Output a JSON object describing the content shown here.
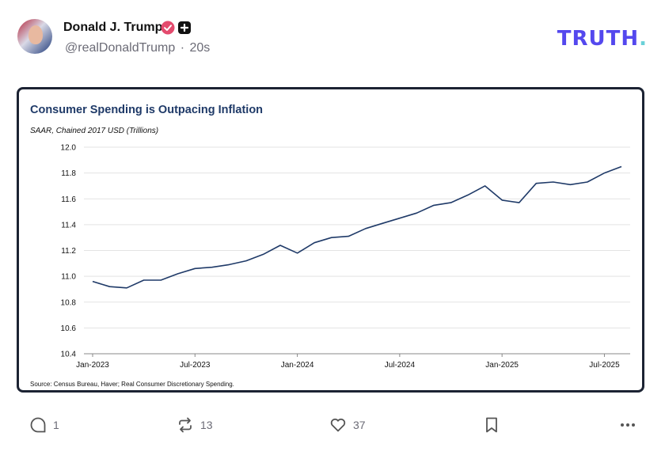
{
  "post": {
    "author_name": "Donald J. Trump",
    "handle": "@realDonaldTrump",
    "timestamp": "20s",
    "separator": "·"
  },
  "brand": {
    "logo_text": "TRUTH",
    "logo_dot": ".",
    "logo_color": "#5448ee",
    "dot_color": "#6ad1d8"
  },
  "actions": {
    "replies": "1",
    "retruths": "13",
    "likes": "37"
  },
  "chart_data": {
    "type": "line",
    "title": "Consumer Spending is Outpacing Inflation",
    "subtitle": "SAAR, Chained 2017 USD (Trillions)",
    "source": "Source: Census Bureau, Haver; Real Consumer Discretionary Spending.",
    "ylim": [
      10.4,
      12.0
    ],
    "yticks": [
      10.4,
      10.6,
      10.8,
      11.0,
      11.2,
      11.4,
      11.6,
      11.8,
      12.0
    ],
    "ytick_labels": [
      "10.4",
      "10.6",
      "10.8",
      "11.0",
      "11.2",
      "11.4",
      "11.6",
      "11.8",
      "12.0"
    ],
    "x_ticks": [
      {
        "label": "Jan-2023",
        "index": 0
      },
      {
        "label": "Jul-2023",
        "index": 6
      },
      {
        "label": "Jan-2024",
        "index": 12
      },
      {
        "label": "Jul-2024",
        "index": 18
      },
      {
        "label": "Jan-2025",
        "index": 24
      },
      {
        "label": "Jul-2025",
        "index": 30
      }
    ],
    "x": [
      "2023-01",
      "2023-02",
      "2023-03",
      "2023-04",
      "2023-05",
      "2023-06",
      "2023-07",
      "2023-08",
      "2023-09",
      "2023-10",
      "2023-11",
      "2023-12",
      "2024-01",
      "2024-02",
      "2024-03",
      "2024-04",
      "2024-05",
      "2024-06",
      "2024-07",
      "2024-08",
      "2024-09",
      "2024-10",
      "2024-11",
      "2024-12",
      "2025-01",
      "2025-02",
      "2025-03",
      "2025-04",
      "2025-05",
      "2025-06",
      "2025-07",
      "2025-08"
    ],
    "series": [
      {
        "name": "Real Consumer Discretionary Spending",
        "color": "#1f3a68",
        "values": [
          10.96,
          10.92,
          10.91,
          10.97,
          10.97,
          11.02,
          11.06,
          11.07,
          11.09,
          11.12,
          11.17,
          11.24,
          11.18,
          11.26,
          11.3,
          11.31,
          11.37,
          11.41,
          11.45,
          11.49,
          11.55,
          11.57,
          11.63,
          11.7,
          11.59,
          11.57,
          11.72,
          11.73,
          11.71,
          11.73,
          11.8,
          11.85
        ]
      }
    ]
  }
}
